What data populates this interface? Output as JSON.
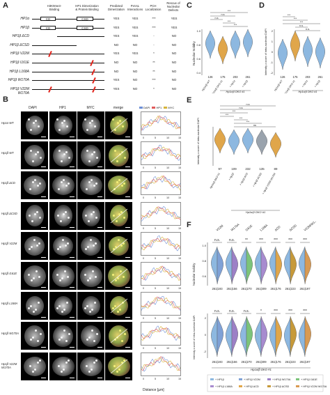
{
  "panels": {
    "A": "A",
    "B": "B",
    "C": "C",
    "D": "D",
    "E": "E",
    "F": "F"
  },
  "tableA": {
    "headers": [
      "H3K9me3-\nBinding",
      "HP1 Dimerization\n& Protein Binding",
      "Predicted\nDimerization",
      "PxVxL\nInteractions",
      "PCH\nLocalization",
      "Rescue of\nNucleolar\nDefects"
    ],
    "domain_labels": [
      "CD",
      "CSD"
    ],
    "rows": [
      {
        "label": "HP1α",
        "vals": [
          "YES",
          "YES",
          "***",
          "YES"
        ]
      },
      {
        "label": "HP1β",
        "vals": [
          "YES",
          "YES",
          "***",
          "YES"
        ]
      },
      {
        "label": "HP1β ΔCD",
        "vals": [
          "YES",
          "YES",
          "-",
          "NO"
        ]
      },
      {
        "label": "HP1β ΔCSD",
        "vals": [
          "NO",
          "NO",
          "-",
          "NO"
        ]
      },
      {
        "label": "HP1β V22M",
        "vals": [
          "YES",
          "YES",
          "*",
          "NO"
        ]
      },
      {
        "label": "HP1β I161E",
        "vals": [
          "NO",
          "NO",
          "**",
          "NO"
        ]
      },
      {
        "label": "HP1β L168A",
        "vals": [
          "NO",
          "NO",
          "**",
          "NO"
        ]
      },
      {
        "label": "HP1β W170A",
        "vals": [
          "YES",
          "NO",
          "***",
          "NO"
        ]
      },
      {
        "label": "HP1β V22M W170A",
        "vals": [
          "YES",
          "NO",
          "*",
          "NO"
        ]
      }
    ]
  },
  "panelB": {
    "col_headers": [
      "DAPI",
      "HP1",
      "MYC",
      "merge"
    ],
    "legend": [
      "DAPI",
      "HP1",
      "MYC"
    ],
    "row_labels": [
      "Hp1α WT",
      "Hp1β WT",
      "Hp1β ΔCD",
      "Hp1β ΔCSD",
      "Hp1β V22M",
      "Hp1β I161E",
      "Hp1β L168A",
      "Hp1β W170A",
      "Hp1β V22M W170A"
    ],
    "x_ticks": [
      "0",
      "5",
      "10",
      "15"
    ],
    "x_axis_label": "Distance [µm]"
  },
  "panelC": {
    "ylabel": "Nucleolar Solidity",
    "y_ticks": [
      "1.0",
      "0.8",
      "0.6",
      "0.4"
    ],
    "n": [
      "126",
      "175",
      "203",
      "261"
    ],
    "xlabels": [
      "Hp1α/β WT",
      "Hp1α/β DKO #1",
      "+ Hp1α",
      "+ Hp1β"
    ],
    "group_label": "Hp1α/β DKO #1",
    "sigs": [
      "n.s",
      "n.s",
      "***",
      "***",
      "***"
    ]
  },
  "panelD": {
    "ylabel": "Intensity z-score of intra-nucleolar DAPI",
    "y_ticks": [
      "2",
      "1",
      "0",
      "-1",
      "-2"
    ],
    "n": [
      "126",
      "175",
      "203",
      "261"
    ],
    "xlabels": [
      "Hp1α/β WT",
      "Hp1α/β DKO #1",
      "+ Hp1α",
      "+ Hp1β"
    ],
    "group_label": "Hp1α/β DKO #1",
    "sigs": [
      "***",
      "***",
      "***",
      "n.s.",
      "n.s."
    ]
  },
  "panelE": {
    "ylabel": "Intensity z-score of intra-nucleolar DAPI",
    "n": [
      "97",
      "109",
      "232",
      "135",
      "89"
    ],
    "xlabels": [
      "Hp1α/β DKO #1",
      "+ Hp1β",
      "+ Hp1β ΔCD",
      "+ Hp1β ΔCSD",
      "+ Hp1β V22M W170A"
    ],
    "group_label": "Hp1α/β DKO #1",
    "sigs": [
      "n.s",
      "n.s",
      "***",
      "***",
      "***",
      "***",
      "ns"
    ]
  },
  "panelF": {
    "top_labels": [
      "V22M",
      "W170A",
      "I161E",
      "L168A",
      "ΔCD",
      "ΔCSD",
      "V22M/W170A"
    ],
    "sig_top": [
      "n.s.",
      "n.s.",
      "**",
      "***",
      "***",
      "***",
      "***"
    ],
    "sig_bottom": [
      "n.s.",
      "n.s.",
      "n.s.",
      "*",
      "***",
      "***",
      "***"
    ],
    "n_pairs": [
      "261|193",
      "261|156",
      "261|270",
      "261|309",
      "261|176",
      "261|223",
      "261|197"
    ],
    "ylabel_top": "Nucleolar Solidity",
    "ylabel_bottom": "Intensity z-score of intra-nucleolar DAPI",
    "y_ticks_top": [
      "1.0",
      "0.8",
      "0.6"
    ],
    "y_ticks_bottom": [
      "2",
      "0",
      "-2"
    ],
    "group_label": "Hp1α/β DKO #1",
    "legend": [
      "+ HP1β",
      "+ HP1β V22M",
      "+ HP1β W170A",
      "+ HP1β I161E",
      "+ HP1β L168A",
      "+ HP1β ΔCD",
      "+ HP1β ΔCSD",
      "+ HP1β V22M W170A"
    ],
    "colors": {
      "blue": "#8db8e0",
      "orange": "#e0a64a",
      "green": "#7cc47a",
      "gray": "#9aa3ad"
    }
  }
}
